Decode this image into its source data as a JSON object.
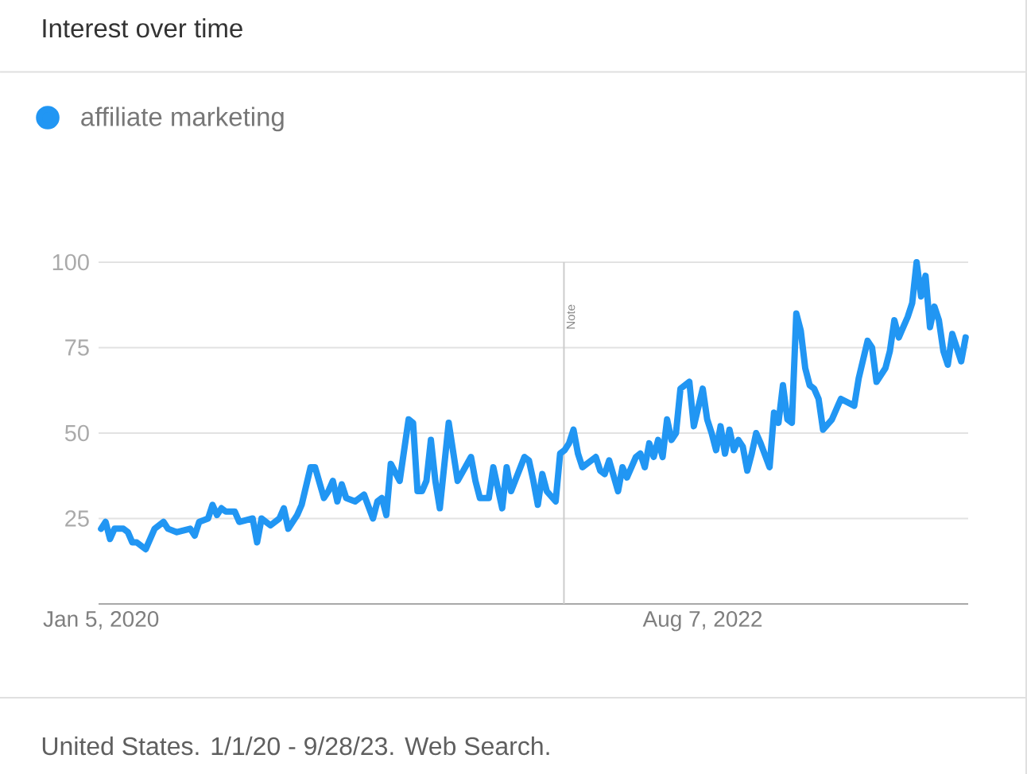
{
  "chart_data": {
    "type": "line",
    "title": "Interest over time",
    "annotations": [
      "United States. 1/1/20 - 9/28/23. Web Search."
    ],
    "x": [
      "2020-01-05",
      "2020-01-12",
      "2020-01-19",
      "2020-01-26",
      "2020-02-09",
      "2020-02-16",
      "2020-02-23",
      "2020-03-01",
      "2020-03-15",
      "2020-03-29",
      "2020-04-12",
      "2020-04-19",
      "2020-05-03",
      "2020-05-24",
      "2020-05-31",
      "2020-06-07",
      "2020-06-21",
      "2020-06-28",
      "2020-07-05",
      "2020-07-12",
      "2020-07-19",
      "2020-08-02",
      "2020-08-09",
      "2020-08-30",
      "2020-09-06",
      "2020-09-13",
      "2020-09-27",
      "2020-10-11",
      "2020-10-18",
      "2020-10-25",
      "2020-11-08",
      "2020-11-15",
      "2020-11-29",
      "2020-12-06",
      "2020-12-20",
      "2020-12-27",
      "2021-01-03",
      "2021-01-10",
      "2021-01-17",
      "2021-01-24",
      "2021-02-07",
      "2021-02-21",
      "2021-03-07",
      "2021-03-14",
      "2021-03-21",
      "2021-03-28",
      "2021-04-04",
      "2021-04-18",
      "2021-05-02",
      "2021-05-09",
      "2021-05-16",
      "2021-05-23",
      "2021-05-30",
      "2021-06-06",
      "2021-06-13",
      "2021-06-20",
      "2021-07-04",
      "2021-07-18",
      "2021-08-08",
      "2021-08-15",
      "2021-08-22",
      "2021-09-05",
      "2021-09-12",
      "2021-09-26",
      "2021-10-03",
      "2021-10-10",
      "2021-10-31",
      "2021-11-07",
      "2021-11-14",
      "2021-11-21",
      "2021-11-28",
      "2021-12-05",
      "2021-12-19",
      "2021-12-26",
      "2022-01-02",
      "2022-01-09",
      "2022-01-16",
      "2022-01-23",
      "2022-01-30",
      "2022-02-20",
      "2022-02-27",
      "2022-03-06",
      "2022-03-13",
      "2022-03-27",
      "2022-04-03",
      "2022-04-10",
      "2022-04-24",
      "2022-05-01",
      "2022-05-08",
      "2022-05-15",
      "2022-05-22",
      "2022-05-29",
      "2022-06-05",
      "2022-06-12",
      "2022-06-19",
      "2022-06-26",
      "2022-07-03",
      "2022-07-17",
      "2022-07-24",
      "2022-08-07",
      "2022-08-14",
      "2022-08-21",
      "2022-08-28",
      "2022-09-04",
      "2022-09-11",
      "2022-09-18",
      "2022-09-25",
      "2022-10-02",
      "2022-10-09",
      "2022-10-16",
      "2022-10-23",
      "2022-10-30",
      "2022-11-06",
      "2022-11-20",
      "2022-11-27",
      "2022-12-04",
      "2022-12-11",
      "2022-12-18",
      "2022-12-25",
      "2023-01-01",
      "2023-01-08",
      "2023-01-15",
      "2023-01-22",
      "2023-01-29",
      "2023-02-05",
      "2023-02-12",
      "2023-02-26",
      "2023-03-05",
      "2023-03-12",
      "2023-04-02",
      "2023-04-09",
      "2023-04-23",
      "2023-04-30",
      "2023-05-07",
      "2023-05-21",
      "2023-05-28",
      "2023-06-04",
      "2023-06-11",
      "2023-06-18",
      "2023-06-25",
      "2023-07-02",
      "2023-07-09",
      "2023-07-16",
      "2023-07-23",
      "2023-07-30",
      "2023-08-06",
      "2023-08-13",
      "2023-08-20",
      "2023-08-27",
      "2023-09-03",
      "2023-09-10",
      "2023-09-17",
      "2023-09-24"
    ],
    "series": [
      {
        "name": "affiliate marketing",
        "color": "#2196f3",
        "values": [
          22,
          24,
          19,
          22,
          22,
          21,
          18,
          18,
          16,
          22,
          24,
          22,
          21,
          22,
          20,
          24,
          25,
          29,
          26,
          28,
          27,
          27,
          24,
          25,
          18,
          25,
          23,
          25,
          28,
          22,
          26,
          29,
          40,
          40,
          31,
          33,
          36,
          30,
          35,
          31,
          30,
          32,
          25,
          30,
          31,
          26,
          41,
          36,
          54,
          53,
          33,
          33,
          36,
          48,
          36,
          28,
          53,
          36,
          43,
          36,
          31,
          31,
          40,
          28,
          40,
          33,
          43,
          42,
          36,
          29,
          38,
          33,
          30,
          44,
          45,
          47,
          51,
          44,
          40,
          43,
          39,
          38,
          42,
          33,
          40,
          37,
          43,
          44,
          40,
          47,
          43,
          48,
          43,
          54,
          48,
          50,
          63,
          65,
          52,
          63,
          54,
          50,
          45,
          52,
          44,
          51,
          45,
          48,
          46,
          39,
          44,
          50,
          47,
          40,
          56,
          53,
          64,
          54,
          53,
          85,
          80,
          69,
          64,
          63,
          60,
          51,
          54,
          57,
          60,
          58,
          66,
          77,
          75,
          65,
          69,
          74,
          83,
          78,
          81,
          84,
          88,
          100,
          90,
          96,
          81,
          87,
          83,
          74,
          70,
          79,
          75,
          71,
          78
        ]
      }
    ],
    "xlim": [
      "2020-01-01",
      "2023-09-28"
    ],
    "xticks": [
      {
        "value": "2020-01-05",
        "label": "Jan 5, 2020"
      },
      {
        "value": "2022-08-07",
        "label": "Aug 7, 2022"
      }
    ],
    "ylim": [
      0,
      100
    ],
    "yticks": [
      25,
      50,
      75,
      100
    ],
    "ref_lines": [
      {
        "axis": "x",
        "value": "2022-01-01",
        "label": "Note",
        "color": "#cccccc"
      }
    ],
    "grid": "y",
    "legend": "top left",
    "line_style": "solid"
  }
}
